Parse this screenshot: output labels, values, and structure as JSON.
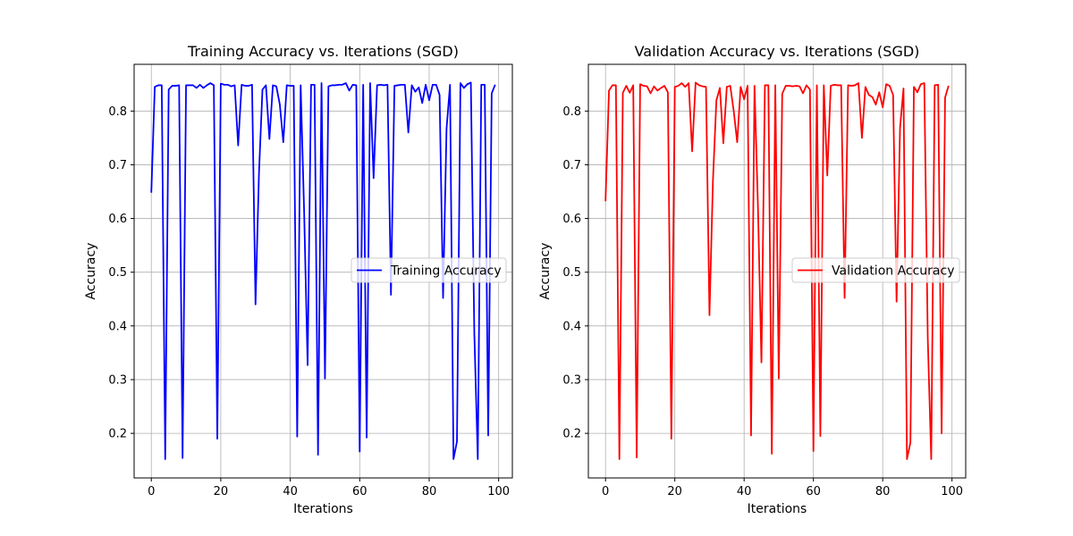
{
  "figure": {
    "background_color": "#ffffff",
    "grid_color": "#b0b0b0"
  },
  "chart_data": [
    {
      "type": "line",
      "title": "Training Accuracy vs. Iterations (SGD)",
      "xlabel": "Iterations",
      "ylabel": "Accuracy",
      "xlim": [
        -4.95,
        103.95
      ],
      "ylim": [
        0.117,
        0.887
      ],
      "xticks": [
        0,
        20,
        40,
        60,
        80,
        100
      ],
      "xtick_labels": [
        "0",
        "20",
        "40",
        "60",
        "80",
        "100"
      ],
      "yticks": [
        0.2,
        0.3,
        0.4,
        0.5,
        0.6,
        0.7,
        0.8
      ],
      "ytick_labels": [
        "0.2",
        "0.3",
        "0.4",
        "0.5",
        "0.6",
        "0.7",
        "0.8"
      ],
      "grid": true,
      "legend": "center right",
      "series": [
        {
          "name": "Training Accuracy",
          "color": "#0000ff",
          "x": [
            0,
            1,
            2,
            3,
            4,
            5,
            6,
            7,
            8,
            9,
            10,
            11,
            12,
            13,
            14,
            15,
            16,
            17,
            18,
            19,
            20,
            21,
            22,
            23,
            24,
            25,
            26,
            27,
            28,
            29,
            30,
            31,
            32,
            33,
            34,
            35,
            36,
            37,
            38,
            39,
            40,
            41,
            42,
            43,
            44,
            45,
            46,
            47,
            48,
            49,
            50,
            51,
            52,
            53,
            54,
            55,
            56,
            57,
            58,
            59,
            60,
            61,
            62,
            63,
            64,
            65,
            66,
            67,
            68,
            69,
            70,
            71,
            72,
            73,
            74,
            75,
            76,
            77,
            78,
            79,
            80,
            81,
            82,
            83,
            84,
            85,
            86,
            87,
            88,
            89,
            90,
            91,
            92,
            93,
            94,
            95,
            96,
            97,
            98,
            99
          ],
          "values": [
            0.648,
            0.845,
            0.848,
            0.848,
            0.152,
            0.84,
            0.847,
            0.847,
            0.848,
            0.154,
            0.848,
            0.848,
            0.848,
            0.843,
            0.849,
            0.843,
            0.848,
            0.852,
            0.848,
            0.19,
            0.851,
            0.849,
            0.849,
            0.846,
            0.848,
            0.736,
            0.849,
            0.847,
            0.847,
            0.849,
            0.44,
            0.685,
            0.84,
            0.848,
            0.748,
            0.848,
            0.846,
            0.812,
            0.742,
            0.848,
            0.847,
            0.847,
            0.194,
            0.848,
            0.612,
            0.327,
            0.849,
            0.849,
            0.16,
            0.852,
            0.302,
            0.846,
            0.848,
            0.848,
            0.849,
            0.849,
            0.852,
            0.838,
            0.849,
            0.848,
            0.166,
            0.849,
            0.192,
            0.852,
            0.675,
            0.848,
            0.849,
            0.848,
            0.849,
            0.458,
            0.847,
            0.848,
            0.849,
            0.849,
            0.76,
            0.848,
            0.836,
            0.844,
            0.815,
            0.849,
            0.82,
            0.849,
            0.849,
            0.83,
            0.452,
            0.767,
            0.849,
            0.152,
            0.185,
            0.852,
            0.843,
            0.85,
            0.853,
            0.386,
            0.152,
            0.849,
            0.849,
            0.196,
            0.833,
            0.849
          ]
        }
      ]
    },
    {
      "type": "line",
      "title": "Validation Accuracy vs. Iterations (SGD)",
      "xlabel": "Iterations",
      "ylabel": "Accuracy",
      "xlim": [
        -4.95,
        103.95
      ],
      "ylim": [
        0.117,
        0.887
      ],
      "xticks": [
        0,
        20,
        40,
        60,
        80,
        100
      ],
      "xtick_labels": [
        "0",
        "20",
        "40",
        "60",
        "80",
        "100"
      ],
      "yticks": [
        0.2,
        0.3,
        0.4,
        0.5,
        0.6,
        0.7,
        0.8
      ],
      "ytick_labels": [
        "0.2",
        "0.3",
        "0.4",
        "0.5",
        "0.6",
        "0.7",
        "0.8"
      ],
      "grid": true,
      "legend": "center right",
      "series": [
        {
          "name": "Validation Accuracy",
          "color": "#ff0000",
          "x": [
            0,
            1,
            2,
            3,
            4,
            5,
            6,
            7,
            8,
            9,
            10,
            11,
            12,
            13,
            14,
            15,
            16,
            17,
            18,
            19,
            20,
            21,
            22,
            23,
            24,
            25,
            26,
            27,
            28,
            29,
            30,
            31,
            32,
            33,
            34,
            35,
            36,
            37,
            38,
            39,
            40,
            41,
            42,
            43,
            44,
            45,
            46,
            47,
            48,
            49,
            50,
            51,
            52,
            53,
            54,
            55,
            56,
            57,
            58,
            59,
            60,
            61,
            62,
            63,
            64,
            65,
            66,
            67,
            68,
            69,
            70,
            71,
            72,
            73,
            74,
            75,
            76,
            77,
            78,
            79,
            80,
            81,
            82,
            83,
            84,
            85,
            86,
            87,
            88,
            89,
            90,
            91,
            92,
            93,
            94,
            95,
            96,
            97,
            98,
            99
          ],
          "values": [
            0.632,
            0.838,
            0.848,
            0.848,
            0.152,
            0.834,
            0.847,
            0.834,
            0.848,
            0.155,
            0.85,
            0.847,
            0.846,
            0.833,
            0.846,
            0.838,
            0.843,
            0.847,
            0.835,
            0.19,
            0.845,
            0.847,
            0.852,
            0.845,
            0.852,
            0.725,
            0.853,
            0.848,
            0.846,
            0.845,
            0.42,
            0.67,
            0.82,
            0.843,
            0.74,
            0.845,
            0.847,
            0.8,
            0.742,
            0.845,
            0.822,
            0.847,
            0.196,
            0.847,
            0.62,
            0.332,
            0.848,
            0.848,
            0.162,
            0.848,
            0.302,
            0.832,
            0.847,
            0.847,
            0.846,
            0.847,
            0.846,
            0.833,
            0.848,
            0.84,
            0.167,
            0.848,
            0.195,
            0.848,
            0.68,
            0.847,
            0.849,
            0.848,
            0.848,
            0.452,
            0.848,
            0.847,
            0.848,
            0.852,
            0.75,
            0.845,
            0.83,
            0.826,
            0.812,
            0.835,
            0.807,
            0.85,
            0.847,
            0.83,
            0.445,
            0.769,
            0.842,
            0.152,
            0.183,
            0.845,
            0.835,
            0.85,
            0.852,
            0.378,
            0.152,
            0.848,
            0.849,
            0.2,
            0.825,
            0.847
          ]
        }
      ]
    }
  ]
}
